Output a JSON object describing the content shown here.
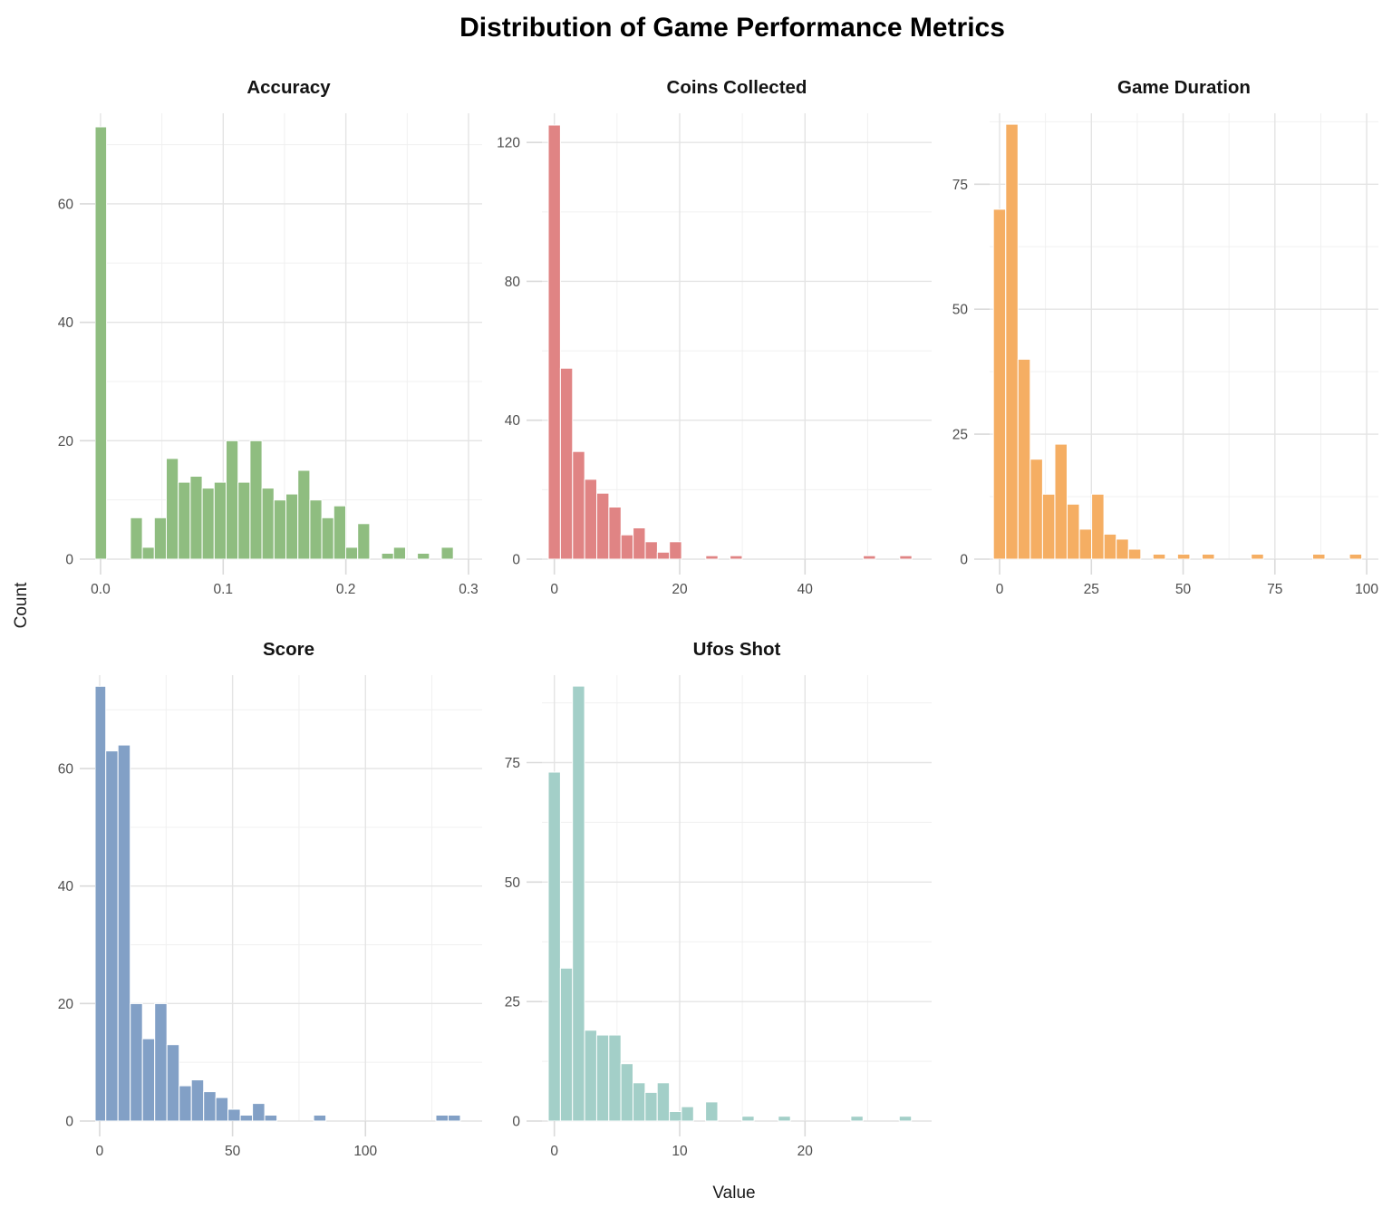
{
  "title": "Distribution of Game Performance Metrics",
  "axis_titles": {
    "y": "Count",
    "x": "Value"
  },
  "chart_data": [
    {
      "type": "bar",
      "id": "accuracy",
      "title": "Accuracy",
      "color": "#8FBD80",
      "bin_width": 0.00975,
      "x": [
        0,
        0.02925,
        0.039,
        0.04875,
        0.0585,
        0.06825,
        0.078,
        0.08775,
        0.0975,
        0.10725,
        0.117,
        0.12675,
        0.1365,
        0.14625,
        0.156,
        0.16575,
        0.1755,
        0.18525,
        0.195,
        0.20475,
        0.2145,
        0.234,
        0.24375,
        0.26325,
        0.28275
      ],
      "counts": [
        73,
        7,
        2,
        7,
        17,
        13,
        14,
        12,
        13,
        20,
        13,
        20,
        12,
        10,
        11,
        15,
        10,
        7,
        9,
        2,
        6,
        1,
        2,
        1,
        2
      ],
      "xlim": [
        -0.0044,
        0.3111
      ],
      "ylim": [
        0,
        75.3
      ],
      "x_ticks": [
        {
          "v": 0,
          "label": "0.0"
        },
        {
          "v": 0.1,
          "label": "0.1"
        },
        {
          "v": 0.2,
          "label": "0.2"
        },
        {
          "v": 0.3,
          "label": "0.3"
        }
      ],
      "y_ticks": [
        {
          "v": 0,
          "label": "0"
        },
        {
          "v": 20,
          "label": "20"
        },
        {
          "v": 40,
          "label": "40"
        },
        {
          "v": 60,
          "label": "60"
        }
      ],
      "x_minor": [
        0.05,
        0.15,
        0.25
      ],
      "y_minor": [
        10,
        30,
        50,
        70
      ],
      "panel": {
        "row": 0,
        "col": 0
      }
    },
    {
      "type": "bar",
      "id": "coins_collected",
      "title": "Coins Collected",
      "color": "#E08484",
      "bin_width": 1.933,
      "x": [
        0,
        1.93,
        3.87,
        5.8,
        7.73,
        9.67,
        11.6,
        13.53,
        15.47,
        17.4,
        19.33,
        25.13,
        29.0,
        50.27,
        56.07
      ],
      "counts": [
        125,
        55,
        31,
        23,
        19,
        15,
        7,
        9,
        5,
        2,
        5,
        1,
        1,
        1,
        1
      ],
      "xlim": [
        -1.98,
        60.2
      ],
      "ylim": [
        0,
        128.4
      ],
      "x_ticks": [
        {
          "v": 0,
          "label": "0"
        },
        {
          "v": 20,
          "label": "20"
        },
        {
          "v": 40,
          "label": "40"
        }
      ],
      "y_ticks": [
        {
          "v": 0,
          "label": "0"
        },
        {
          "v": 40,
          "label": "40"
        },
        {
          "v": 80,
          "label": "80"
        },
        {
          "v": 120,
          "label": "120"
        }
      ],
      "x_minor": [
        10,
        30,
        50
      ],
      "y_minor": [
        20,
        60,
        100
      ],
      "panel": {
        "row": 0,
        "col": 1
      }
    },
    {
      "type": "bar",
      "id": "game_duration",
      "title": "Game Duration",
      "color": "#F5AE63",
      "bin_width": 3.345,
      "x": [
        0,
        3.34,
        6.69,
        10.03,
        13.38,
        16.72,
        20.07,
        23.41,
        26.76,
        30.1,
        33.45,
        36.79,
        43.48,
        50.17,
        56.86,
        70.24,
        86.96,
        97.0
      ],
      "counts": [
        70,
        87,
        40,
        20,
        13,
        23,
        11,
        6,
        13,
        5,
        4,
        2,
        1,
        1,
        1,
        1,
        1,
        1
      ],
      "xlim": [
        -2.72,
        103.2
      ],
      "ylim": [
        0,
        89.2
      ],
      "x_ticks": [
        {
          "v": 0,
          "label": "0"
        },
        {
          "v": 25,
          "label": "25"
        },
        {
          "v": 50,
          "label": "50"
        },
        {
          "v": 75,
          "label": "75"
        },
        {
          "v": 100,
          "label": "100"
        }
      ],
      "y_ticks": [
        {
          "v": 0,
          "label": "0"
        },
        {
          "v": 25,
          "label": "25"
        },
        {
          "v": 50,
          "label": "50"
        },
        {
          "v": 75,
          "label": "75"
        }
      ],
      "x_minor": [
        12.5,
        37.5,
        62.5,
        87.5
      ],
      "y_minor": [
        12.5,
        37.5,
        62.5,
        87.5
      ],
      "panel": {
        "row": 0,
        "col": 2
      }
    },
    {
      "type": "bar",
      "id": "score",
      "title": "Score",
      "color": "#82A0C6",
      "bin_width": 4.6,
      "x": [
        0,
        4.6,
        9.2,
        13.8,
        18.4,
        23,
        27.6,
        32.2,
        36.8,
        41.4,
        46,
        50.6,
        55.2,
        59.8,
        64.4,
        82.8,
        128.8,
        133.4
      ],
      "counts": [
        74,
        63,
        64,
        20,
        14,
        20,
        13,
        6,
        7,
        5,
        4,
        2,
        1,
        3,
        1,
        1,
        1,
        1
      ],
      "xlim": [
        -1.7,
        143.9
      ],
      "ylim": [
        0,
        75.9
      ],
      "x_ticks": [
        {
          "v": 0,
          "label": "0"
        },
        {
          "v": 50,
          "label": "50"
        },
        {
          "v": 100,
          "label": "100"
        }
      ],
      "y_ticks": [
        {
          "v": 0,
          "label": "0"
        },
        {
          "v": 20,
          "label": "20"
        },
        {
          "v": 40,
          "label": "40"
        },
        {
          "v": 60,
          "label": "60"
        }
      ],
      "x_minor": [
        25,
        75,
        125
      ],
      "y_minor": [
        10,
        30,
        50,
        70
      ],
      "panel": {
        "row": 1,
        "col": 0
      }
    },
    {
      "type": "bar",
      "id": "ufos_shot",
      "title": "Ufos Shot",
      "color": "#A3CFC8",
      "bin_width": 0.966,
      "x": [
        0,
        0.97,
        1.93,
        2.9,
        3.86,
        4.83,
        5.79,
        6.76,
        7.72,
        8.69,
        9.66,
        10.62,
        12.55,
        15.45,
        18.35,
        24.14,
        28.0
      ],
      "counts": [
        73,
        32,
        91,
        19,
        18,
        18,
        12,
        8,
        6,
        8,
        2,
        3,
        4,
        1,
        1,
        1,
        1
      ],
      "xlim": [
        -0.99,
        30.1
      ],
      "ylim": [
        0,
        93.3
      ],
      "x_ticks": [
        {
          "v": 0,
          "label": "0"
        },
        {
          "v": 10,
          "label": "10"
        },
        {
          "v": 20,
          "label": "20"
        }
      ],
      "y_ticks": [
        {
          "v": 0,
          "label": "0"
        },
        {
          "v": 25,
          "label": "25"
        },
        {
          "v": 50,
          "label": "50"
        },
        {
          "v": 75,
          "label": "75"
        }
      ],
      "x_minor": [
        5,
        15,
        25
      ],
      "y_minor": [
        12.5,
        37.5,
        62.5,
        87.5
      ],
      "panel": {
        "row": 1,
        "col": 1
      }
    }
  ],
  "style_colors": {
    "major_grid": "#E4E4E4",
    "minor_grid": "#F0F0F0",
    "axis_tick": "#DADADA",
    "tick_label": "#4D4D4D",
    "panel_title": "#141414",
    "bar_border": "#FFFFFF"
  }
}
